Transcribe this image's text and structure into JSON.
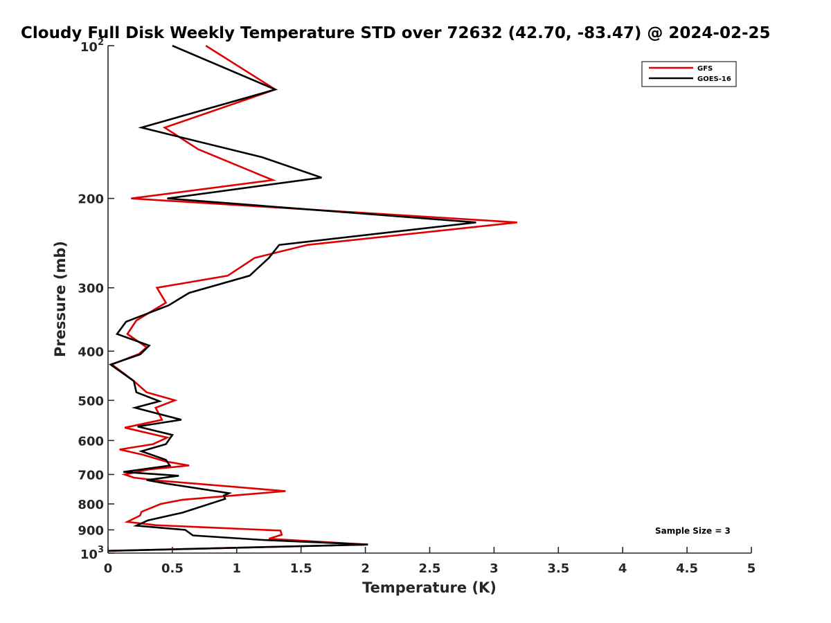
{
  "chart_data": {
    "type": "line",
    "title": "Cloudy Full Disk Weekly Temperature STD over 72632 (42.70, -83.47) @ 2024-02-25",
    "xlabel": "Temperature (K)",
    "ylabel": "Pressure (mb)",
    "xlim": [
      0,
      5
    ],
    "ylim": [
      100,
      1000
    ],
    "y_scale": "log",
    "y_reversed": true,
    "x_ticks": [
      "0",
      "0.5",
      "1",
      "1.5",
      "2",
      "2.5",
      "3",
      "3.5",
      "4",
      "4.5",
      "5"
    ],
    "y_ticks": [
      {
        "value": 100,
        "base": "10",
        "exp": "2"
      },
      {
        "value": 200,
        "label": "200"
      },
      {
        "value": 300,
        "label": "300"
      },
      {
        "value": 400,
        "label": "400"
      },
      {
        "value": 500,
        "label": "500"
      },
      {
        "value": 600,
        "label": "600"
      },
      {
        "value": 700,
        "label": "700"
      },
      {
        "value": 800,
        "label": "800"
      },
      {
        "value": 900,
        "label": "900"
      },
      {
        "value": 1000,
        "base": "10",
        "exp": "3"
      }
    ],
    "legend_position": "top-right",
    "annotation": "Sample Size = 3",
    "series": [
      {
        "name": "GFS",
        "color": "#e00000",
        "points": [
          [
            0.76,
            100
          ],
          [
            1.3,
            122
          ],
          [
            0.44,
            145
          ],
          [
            0.7,
            160
          ],
          [
            1.28,
            184
          ],
          [
            0.18,
            200
          ],
          [
            3.18,
            223
          ],
          [
            1.55,
            247
          ],
          [
            1.14,
            262
          ],
          [
            0.93,
            284
          ],
          [
            0.38,
            300
          ],
          [
            0.45,
            321
          ],
          [
            0.22,
            348
          ],
          [
            0.15,
            370
          ],
          [
            0.3,
            393
          ],
          [
            0.24,
            405
          ],
          [
            0.03,
            425
          ],
          [
            0.2,
            458
          ],
          [
            0.3,
            482
          ],
          [
            0.52,
            500
          ],
          [
            0.37,
            517
          ],
          [
            0.42,
            546
          ],
          [
            0.13,
            566
          ],
          [
            0.46,
            592
          ],
          [
            0.35,
            610
          ],
          [
            0.09,
            625
          ],
          [
            0.27,
            640
          ],
          [
            0.45,
            660
          ],
          [
            0.63,
            672
          ],
          [
            0.32,
            684
          ],
          [
            0.13,
            700
          ],
          [
            0.2,
            710
          ],
          [
            0.4,
            720
          ],
          [
            1.38,
            755
          ],
          [
            0.58,
            785
          ],
          [
            0.41,
            800
          ],
          [
            0.26,
            829
          ],
          [
            0.25,
            843
          ],
          [
            0.15,
            868
          ],
          [
            0.37,
            881
          ],
          [
            1.34,
            903
          ],
          [
            1.35,
            920
          ],
          [
            1.25,
            937
          ],
          [
            2.02,
            962
          ],
          [
            0.0,
            990
          ]
        ]
      },
      {
        "name": "GOES-16",
        "color": "#000000",
        "points": [
          [
            0.5,
            100
          ],
          [
            1.3,
            122
          ],
          [
            0.26,
            145
          ],
          [
            1.2,
            166
          ],
          [
            1.66,
            182
          ],
          [
            0.46,
            200
          ],
          [
            2.86,
            223
          ],
          [
            1.33,
            247
          ],
          [
            1.25,
            262
          ],
          [
            1.1,
            284
          ],
          [
            0.63,
            307
          ],
          [
            0.47,
            325
          ],
          [
            0.14,
            350
          ],
          [
            0.07,
            370
          ],
          [
            0.32,
            390
          ],
          [
            0.25,
            406
          ],
          [
            0.02,
            425
          ],
          [
            0.2,
            458
          ],
          [
            0.22,
            482
          ],
          [
            0.4,
            502
          ],
          [
            0.21,
            517
          ],
          [
            0.57,
            546
          ],
          [
            0.23,
            563
          ],
          [
            0.5,
            585
          ],
          [
            0.45,
            610
          ],
          [
            0.26,
            630
          ],
          [
            0.45,
            655
          ],
          [
            0.48,
            672
          ],
          [
            0.12,
            692
          ],
          [
            0.55,
            704
          ],
          [
            0.3,
            718
          ],
          [
            0.46,
            730
          ],
          [
            0.94,
            762
          ],
          [
            0.9,
            770
          ],
          [
            0.91,
            782
          ],
          [
            0.69,
            815
          ],
          [
            0.58,
            832
          ],
          [
            0.31,
            862
          ],
          [
            0.22,
            883
          ],
          [
            0.6,
            900
          ],
          [
            0.66,
            923
          ],
          [
            1.2,
            942
          ],
          [
            2.02,
            962
          ],
          [
            0.0,
            990
          ]
        ]
      }
    ]
  }
}
